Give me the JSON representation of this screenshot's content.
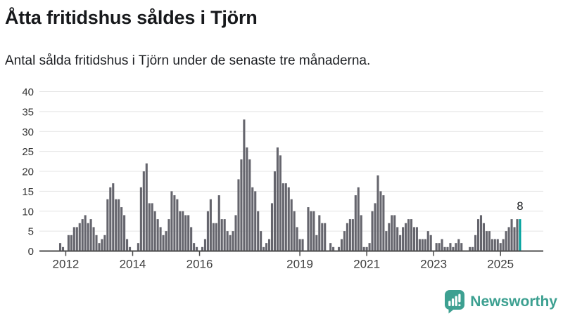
{
  "header": {
    "title": "Åtta fritidshus såldes i Tjörn",
    "subtitle": "Antal sålda fritidshus i Tjörn under de senaste tre månaderna."
  },
  "chart_data": {
    "type": "bar",
    "title": "Åtta fritidshus såldes i Tjörn",
    "subtitle": "Antal sålda fritidshus i Tjörn under de senaste tre månaderna.",
    "frequency": "monthly",
    "x_start": "2011-11",
    "x_end": "2025-08",
    "values": [
      2,
      1,
      0,
      4,
      4,
      6,
      6,
      7,
      8,
      9,
      7,
      8,
      6,
      4,
      2,
      3,
      4,
      13,
      16,
      17,
      13,
      13,
      11,
      9,
      3,
      1,
      0,
      0,
      2,
      16,
      20,
      22,
      12,
      12,
      10,
      8,
      6,
      4,
      5,
      8,
      15,
      14,
      13,
      10,
      10,
      9,
      9,
      6,
      2,
      1,
      0,
      1,
      3,
      10,
      13,
      7,
      7,
      14,
      8,
      8,
      5,
      4,
      5,
      9,
      18,
      23,
      33,
      26,
      23,
      16,
      15,
      10,
      5,
      1,
      2,
      3,
      12,
      20,
      26,
      24,
      17,
      17,
      16,
      13,
      10,
      6,
      3,
      3,
      0,
      11,
      10,
      10,
      4,
      9,
      7,
      7,
      0,
      2,
      1,
      0,
      1,
      3,
      5,
      7,
      8,
      8,
      14,
      16,
      9,
      1,
      1,
      2,
      10,
      12,
      19,
      15,
      14,
      5,
      7,
      9,
      9,
      6,
      4,
      6,
      7,
      8,
      8,
      6,
      6,
      3,
      3,
      3,
      5,
      4,
      0,
      2,
      2,
      3,
      1,
      1,
      2,
      1,
      2,
      3,
      2,
      0,
      0,
      1,
      1,
      4,
      8,
      9,
      7,
      5,
      5,
      3,
      3,
      3,
      2,
      3,
      5,
      6,
      8,
      6,
      8,
      8
    ],
    "highlight": {
      "index": 165,
      "value": 8,
      "label": "8",
      "color": "#00a29d"
    },
    "bar_color": "#65656d",
    "ylim": [
      0,
      40
    ],
    "yticks": [
      0,
      5,
      10,
      15,
      20,
      25,
      30,
      35,
      40
    ],
    "xticks": [
      {
        "label": "2012",
        "month_index": 2
      },
      {
        "label": "2014",
        "month_index": 26
      },
      {
        "label": "2016",
        "month_index": 50
      },
      {
        "label": "2019",
        "month_index": 86
      },
      {
        "label": "2021",
        "month_index": 110
      },
      {
        "label": "2023",
        "month_index": 134
      },
      {
        "label": "2025",
        "month_index": 158
      }
    ],
    "grid": true,
    "legend": "none",
    "grid_color": "#e4e4e4",
    "axis_color": "#4a4a4a",
    "ytick_color": "#333333",
    "xtick_color": "#3d3d3d"
  },
  "footer": {
    "brand": "Newsworthy",
    "logo_color": "#3da091",
    "logo_icon": "newsworthy-chart-bubble-icon"
  }
}
